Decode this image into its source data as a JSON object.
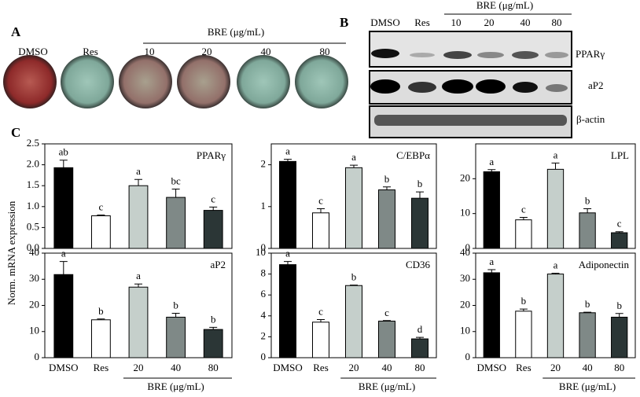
{
  "panel_a": {
    "label": "A",
    "lanes": [
      "DMSO",
      "Res",
      "10",
      "20",
      "40",
      "80"
    ],
    "group_label": "BRE (μg/mL)"
  },
  "panel_b": {
    "label": "B",
    "lanes": [
      "DMSO",
      "Res",
      "10",
      "20",
      "40",
      "80"
    ],
    "group_label": "BRE (μg/mL)",
    "blots": [
      "PPARγ",
      "aP2",
      "β-actin"
    ]
  },
  "panel_c": {
    "label": "C",
    "y_axis_label": "Norm. mRNA expression"
  },
  "chart_data": [
    {
      "type": "bar",
      "title": "PPARγ",
      "categories": [
        null,
        null,
        null,
        null,
        null
      ],
      "values": [
        1.93,
        0.78,
        1.5,
        1.22,
        0.91
      ],
      "errors": [
        0.18,
        0.02,
        0.15,
        0.2,
        0.08
      ],
      "annotations": [
        "ab",
        "c",
        "a",
        "bc",
        "c"
      ],
      "colors": [
        "#000000",
        "#ffffff",
        "#c5cfcb",
        "#7f8987",
        "#2b3636"
      ],
      "ylim": [
        0,
        2.5
      ],
      "yticks": [
        {
          "value": 0,
          "label": "0.0"
        },
        0.5,
        {
          "value": 1,
          "label": "1.0"
        },
        1.5,
        {
          "value": 2,
          "label": "2.0"
        },
        2.5
      ]
    },
    {
      "type": "bar",
      "title": "C/EBPα",
      "categories": [
        null,
        null,
        null,
        null,
        null
      ],
      "values": [
        2.08,
        0.85,
        1.93,
        1.4,
        1.2
      ],
      "errors": [
        0.05,
        0.1,
        0.06,
        0.07,
        0.15
      ],
      "annotations": [
        "a",
        "c",
        "a",
        "b",
        "b"
      ],
      "colors": [
        "#000000",
        "#ffffff",
        "#c5cfcb",
        "#7f8987",
        "#2b3636"
      ],
      "ylim": [
        0,
        2.5
      ],
      "yticks": [
        0,
        1,
        2
      ]
    },
    {
      "type": "bar",
      "title": "LPL",
      "categories": [
        null,
        null,
        null,
        null,
        null
      ],
      "values": [
        22,
        8.2,
        22.7,
        10.2,
        4.5
      ],
      "errors": [
        0.6,
        0.7,
        1.8,
        1.2,
        0.3
      ],
      "annotations": [
        "a",
        "c",
        "a",
        "b",
        "c"
      ],
      "colors": [
        "#000000",
        "#ffffff",
        "#c5cfcb",
        "#7f8987",
        "#2b3636"
      ],
      "ylim": [
        0,
        30
      ],
      "yticks": [
        0,
        10,
        20
      ]
    },
    {
      "type": "bar",
      "title": "aP2",
      "categories": [
        "DMSO",
        "Res",
        "20",
        "40",
        "80"
      ],
      "x_group_label": "BRE (μg/mL)",
      "values": [
        31.8,
        14.5,
        27,
        15.5,
        10.8
      ],
      "errors": [
        5,
        0.3,
        1.2,
        1.5,
        0.8
      ],
      "annotations": [
        "a",
        "b",
        "a",
        "b",
        "b"
      ],
      "colors": [
        "#000000",
        "#ffffff",
        "#c5cfcb",
        "#7f8987",
        "#2b3636"
      ],
      "ylim": [
        0,
        40
      ],
      "yticks": [
        0,
        10,
        20,
        30,
        40
      ]
    },
    {
      "type": "bar",
      "title": "CD36",
      "categories": [
        "DMSO",
        "Res",
        "20",
        "40",
        "80"
      ],
      "x_group_label": "BRE (μg/mL)",
      "values": [
        8.9,
        3.4,
        6.9,
        3.5,
        1.8
      ],
      "errors": [
        0.3,
        0.25,
        0.05,
        0.05,
        0.15
      ],
      "annotations": [
        "a",
        "c",
        "b",
        "c",
        "d"
      ],
      "colors": [
        "#000000",
        "#ffffff",
        "#c5cfcb",
        "#7f8987",
        "#2b3636"
      ],
      "ylim": [
        0,
        10
      ],
      "yticks": [
        0,
        2,
        4,
        6,
        8,
        10
      ]
    },
    {
      "type": "bar",
      "title": "Adiponectin",
      "categories": [
        "DMSO",
        "Res",
        "20",
        "40",
        "80"
      ],
      "x_group_label": "BRE (μg/mL)",
      "values": [
        32.5,
        17.8,
        32,
        17.2,
        15.5
      ],
      "errors": [
        1.2,
        0.8,
        0.3,
        0.2,
        1.4
      ],
      "annotations": [
        "a",
        "b",
        "a",
        "b",
        "b"
      ],
      "colors": [
        "#000000",
        "#ffffff",
        "#c5cfcb",
        "#7f8987",
        "#2b3636"
      ],
      "ylim": [
        0,
        40
      ],
      "yticks": [
        0,
        10,
        20,
        30,
        40
      ]
    }
  ]
}
